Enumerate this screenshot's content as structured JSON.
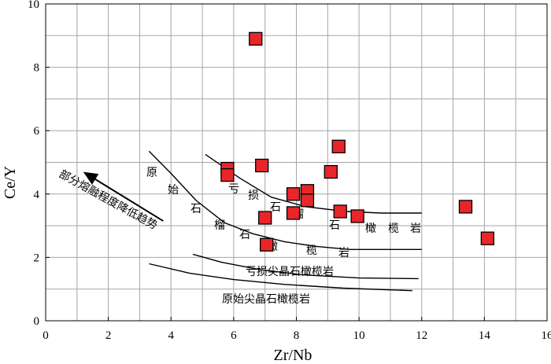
{
  "chart_data": {
    "type": "scatter",
    "xlabel": "Zr/Nb",
    "ylabel": "Ce/Y",
    "xlim": [
      0,
      16
    ],
    "ylim": [
      0,
      10
    ],
    "x_ticks": [
      "0",
      "2",
      "4",
      "6",
      "8",
      "10",
      "12",
      "14",
      "16"
    ],
    "y_ticks": [
      "0",
      "2",
      "4",
      "6",
      "8",
      "10"
    ],
    "grid": true,
    "marker_color": "#e8262a",
    "points": [
      {
        "x": 6.7,
        "y": 8.9
      },
      {
        "x": 9.35,
        "y": 5.5
      },
      {
        "x": 5.8,
        "y": 4.8
      },
      {
        "x": 5.8,
        "y": 4.6
      },
      {
        "x": 6.9,
        "y": 4.9
      },
      {
        "x": 9.1,
        "y": 4.7
      },
      {
        "x": 7.9,
        "y": 4.0
      },
      {
        "x": 8.35,
        "y": 4.1
      },
      {
        "x": 8.35,
        "y": 3.8
      },
      {
        "x": 7.9,
        "y": 3.4
      },
      {
        "x": 7.0,
        "y": 3.25
      },
      {
        "x": 9.4,
        "y": 3.45
      },
      {
        "x": 9.95,
        "y": 3.3
      },
      {
        "x": 7.05,
        "y": 2.4
      },
      {
        "x": 13.4,
        "y": 3.6
      },
      {
        "x": 14.1,
        "y": 2.6
      }
    ],
    "boundary_curves": [
      {
        "name": "亏损石榴石橄榄岩-upper",
        "points": [
          [
            5.1,
            5.25
          ],
          [
            6.2,
            4.5
          ],
          [
            7.2,
            3.9
          ],
          [
            8.3,
            3.6
          ],
          [
            9.6,
            3.45
          ],
          [
            10.7,
            3.4
          ],
          [
            12.0,
            3.4
          ]
        ]
      },
      {
        "name": "原始石榴石橄榄岩",
        "points": [
          [
            3.3,
            5.35
          ],
          [
            4.0,
            4.65
          ],
          [
            4.8,
            3.8
          ],
          [
            5.7,
            3.1
          ],
          [
            6.6,
            2.75
          ],
          [
            7.6,
            2.5
          ],
          [
            8.6,
            2.35
          ],
          [
            9.7,
            2.25
          ],
          [
            12.0,
            2.25
          ]
        ]
      },
      {
        "name": "亏损尖晶石橄榄岩",
        "points": [
          [
            4.7,
            2.1
          ],
          [
            5.6,
            1.85
          ],
          [
            6.8,
            1.62
          ],
          [
            8.2,
            1.45
          ],
          [
            10.0,
            1.35
          ],
          [
            11.9,
            1.33
          ]
        ]
      },
      {
        "name": "原始尖晶石橄榄岩",
        "points": [
          [
            3.3,
            1.8
          ],
          [
            4.6,
            1.5
          ],
          [
            6.0,
            1.3
          ],
          [
            7.6,
            1.15
          ],
          [
            9.5,
            1.03
          ],
          [
            11.7,
            0.95
          ]
        ]
      }
    ],
    "arrow": {
      "from": [
        3.75,
        3.15
      ],
      "to": [
        1.2,
        4.7
      ]
    },
    "labels": {
      "melting_trend": "部分熔融程度降低趋势",
      "primitive_garnet": [
        "原",
        "始",
        "石",
        "榴",
        "石",
        "橄",
        "榄",
        "岩"
      ],
      "depleted_garnet": [
        "亏",
        "损",
        "石",
        "榴",
        "石",
        "橄",
        "榄",
        "岩"
      ],
      "depleted_spinel": "亏损尖晶石橄榄岩",
      "primitive_spinel": "原始尖晶石橄榄岩"
    }
  }
}
